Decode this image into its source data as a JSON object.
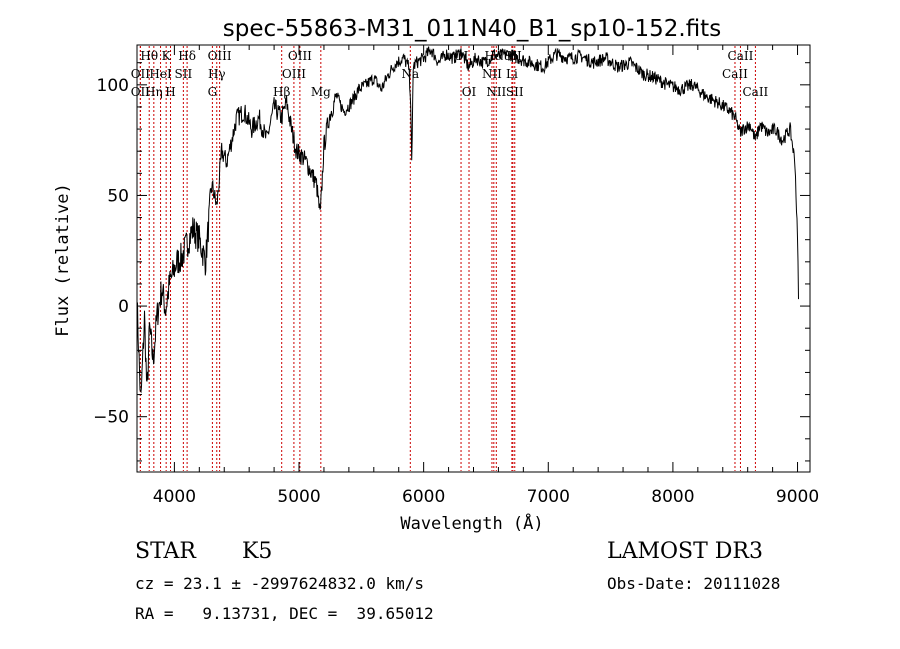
{
  "chart_data": {
    "type": "line",
    "title": "spec-55863-M31_011N40_B1_sp10-152.fits",
    "xlabel": "Wavelength (Å)",
    "ylabel": "Flux (relative)",
    "xlim": [
      3700,
      9100
    ],
    "ylim": [
      -75,
      118
    ],
    "x_ticks": [
      4000,
      5000,
      6000,
      7000,
      8000,
      9000
    ],
    "y_ticks": [
      -50,
      0,
      50,
      100
    ],
    "line_color": "#000000",
    "marker_color": "#cc0000",
    "spectrum_anchors": {
      "x": [
        3700,
        3730,
        3760,
        3780,
        3800,
        3830,
        3860,
        3900,
        3930,
        3960,
        3990,
        4020,
        4060,
        4100,
        4150,
        4200,
        4250,
        4300,
        4340,
        4380,
        4420,
        4460,
        4500,
        4560,
        4620,
        4680,
        4740,
        4800,
        4860,
        4900,
        4940,
        4980,
        5020,
        5060,
        5100,
        5140,
        5170,
        5200,
        5240,
        5300,
        5360,
        5420,
        5480,
        5540,
        5600,
        5660,
        5720,
        5780,
        5840,
        5880,
        5895,
        5905,
        5915,
        5940,
        6000,
        6060,
        6120,
        6180,
        6240,
        6300,
        6360,
        6420,
        6480,
        6540,
        6563,
        6600,
        6680,
        6760,
        6860,
        6960,
        7060,
        7160,
        7260,
        7360,
        7460,
        7560,
        7660,
        7760,
        7860,
        7960,
        8060,
        8160,
        8260,
        8360,
        8460,
        8500,
        8542,
        8560,
        8620,
        8662,
        8700,
        8760,
        8820,
        8880,
        8940,
        8980,
        9000,
        9010
      ],
      "y": [
        2,
        -45,
        -5,
        -40,
        -10,
        -25,
        -5,
        8,
        -2,
        10,
        15,
        20,
        22,
        28,
        35,
        30,
        20,
        55,
        45,
        70,
        65,
        75,
        85,
        88,
        80,
        85,
        75,
        90,
        85,
        92,
        80,
        70,
        68,
        65,
        60,
        55,
        40,
        72,
        85,
        95,
        88,
        92,
        98,
        100,
        103,
        98,
        105,
        110,
        112,
        108,
        95,
        60,
        108,
        110,
        112,
        116,
        110,
        114,
        112,
        115,
        108,
        112,
        110,
        112,
        114,
        113,
        114,
        112,
        110,
        108,
        114,
        112,
        113,
        110,
        112,
        108,
        110,
        105,
        103,
        100,
        98,
        100,
        95,
        92,
        88,
        85,
        78,
        80,
        82,
        75,
        82,
        78,
        80,
        75,
        80,
        65,
        30,
        0
      ]
    },
    "lines": [
      {
        "label": "Hθ",
        "x": 3798,
        "row": 0
      },
      {
        "label": "OII",
        "x": 3727,
        "row": 1
      },
      {
        "label": "OII",
        "x": 3727,
        "row": 2
      },
      {
        "label": "Hη",
        "x": 3835,
        "row": 2
      },
      {
        "label": "K",
        "x": 3934,
        "row": 0
      },
      {
        "label": "HeI",
        "x": 3889,
        "row": 1
      },
      {
        "label": "H",
        "x": 3969,
        "row": 2
      },
      {
        "label": "Hδ",
        "x": 4102,
        "row": 0
      },
      {
        "label": "SII",
        "x": 4072,
        "row": 1
      },
      {
        "label": "OIII",
        "x": 4363,
        "row": 0
      },
      {
        "label": "Hγ",
        "x": 4340,
        "row": 1
      },
      {
        "label": "G",
        "x": 4305,
        "row": 2
      },
      {
        "label": "OIII",
        "x": 5007,
        "row": 0
      },
      {
        "label": "OIII",
        "x": 4959,
        "row": 1
      },
      {
        "label": "Hβ",
        "x": 4861,
        "row": 2
      },
      {
        "label": "Mg",
        "x": 5175,
        "row": 2
      },
      {
        "label": "Na",
        "x": 5893,
        "row": 1
      },
      {
        "label": "OI",
        "x": 6300,
        "row": 0
      },
      {
        "label": "OI",
        "x": 6364,
        "row": 2
      },
      {
        "label": "Hα",
        "x": 6563,
        "row": 0
      },
      {
        "label": "SII",
        "x": 6716,
        "row": 0
      },
      {
        "label": "NII",
        "x": 6548,
        "row": 1
      },
      {
        "label": "Li",
        "x": 6708,
        "row": 1
      },
      {
        "label": "NII",
        "x": 6583,
        "row": 2
      },
      {
        "label": "SII",
        "x": 6731,
        "row": 2
      },
      {
        "label": "CaII",
        "x": 8542,
        "row": 0
      },
      {
        "label": "CaII",
        "x": 8498,
        "row": 1
      },
      {
        "label": "CaII",
        "x": 8662,
        "row": 2
      }
    ]
  },
  "info": {
    "class": "STAR",
    "subclass": "K5",
    "survey": "LAMOST DR3",
    "cz_line": "cz = 23.1 ± -2997624832.0 km/s",
    "obs_date": "Obs-Date: 20111028",
    "radec_line": "RA =   9.13731, DEC =  39.65012"
  }
}
